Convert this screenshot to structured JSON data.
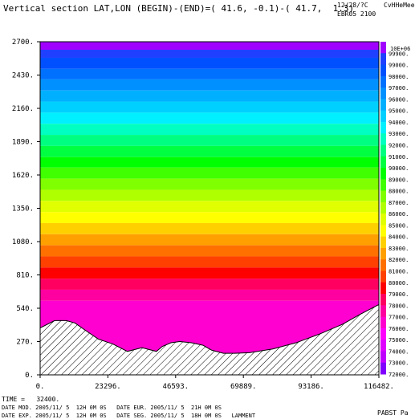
{
  "header": {
    "title": "Vertical section LAT,LON (BEGIN)-(END)=( 41.6, -0.1)-( 41.7,  1.3)",
    "date": "12/28/?C",
    "user": "CvHHeMee",
    "model": "EBR05 2100"
  },
  "footer": {
    "time": "TIME =   32400.",
    "line1": "DATE MOD. 2005/11/ 5  12H 0M 0S   DATE EUR. 2005/11/ 5  21H 0M 0S",
    "line2": "DATE EXP. 2005/11/ 5  12H 0M 0S   DATE SEG. 2005/11/ 5  18H 0M 0S   LAMMENT",
    "variable": "PABST Pa"
  },
  "chart_data": {
    "type": "heatmap",
    "title": "Vertical section LAT,LON (BEGIN)-(END)=( 41.6, -0.1)-( 41.7,  1.3)",
    "xlabel": "",
    "ylabel": "",
    "xlim": [
      0,
      116482
    ],
    "ylim": [
      0,
      2700
    ],
    "x_ticks": [
      "0.",
      "23296.",
      "46593.",
      "69889.",
      "93186.",
      "116482."
    ],
    "x_tick_values": [
      0,
      23296,
      46593,
      69889,
      93186,
      116482
    ],
    "y_ticks": [
      "0.",
      "270.",
      "540.",
      "810.",
      "1080.",
      "1350.",
      "1620.",
      "1890.",
      "2160.",
      "2430.",
      "2700."
    ],
    "y_tick_values": [
      0,
      270,
      540,
      810,
      1080,
      1350,
      1620,
      1890,
      2160,
      2430,
      2700
    ],
    "variable": "PABST Pa",
    "legend_top_label": "10E+06",
    "legend_levels": [
      99900,
      99000,
      98000,
      97000,
      96000,
      95000,
      94000,
      93000,
      92000,
      91000,
      90000,
      89000,
      88000,
      87000,
      86000,
      85000,
      84000,
      83000,
      82000,
      81000,
      80000,
      79000,
      78000,
      77000,
      76000,
      75000,
      74000,
      73000,
      72000
    ],
    "legend_labels": [
      "99900.",
      "99000.",
      "98000.",
      "97000.",
      "96000.",
      "95000.",
      "94000.",
      "93000.",
      "92000.",
      "91000.",
      "90000.",
      "89000.",
      "88000.",
      "87000.",
      "86000.",
      "85000.",
      "84000.",
      "83000.",
      "82000.",
      "81000.",
      "80000.",
      "79000.",
      "78000.",
      "77000.",
      "76000.",
      "75000.",
      "74000.",
      "73000.",
      "72000."
    ],
    "legend_colors": [
      "#a000ff",
      "#2040ff",
      "#0050ff",
      "#0070ff",
      "#0090ff",
      "#00b0ff",
      "#00d0ff",
      "#00f0ff",
      "#00ffc0",
      "#00ff80",
      "#00ff40",
      "#00ff00",
      "#40ff00",
      "#80ff00",
      "#b0ff00",
      "#e0ff00",
      "#ffff00",
      "#ffd000",
      "#ffa000",
      "#ff7000",
      "#ff4000",
      "#ff0000",
      "#ff0060",
      "#ff00a0",
      "#ff00d0",
      "#ff00ff",
      "#e000ff",
      "#c000ff",
      "#8000ff"
    ],
    "pressure_bands": [
      {
        "z_bottom": 2635,
        "z_top": 2700,
        "value": 99900
      },
      {
        "z_bottom": 2570,
        "z_top": 2635,
        "value": 99000
      },
      {
        "z_bottom": 2480,
        "z_top": 2570,
        "value": 98000
      },
      {
        "z_bottom": 2395,
        "z_top": 2480,
        "value": 97000
      },
      {
        "z_bottom": 2305,
        "z_top": 2395,
        "value": 96000
      },
      {
        "z_bottom": 2215,
        "z_top": 2305,
        "value": 95000
      },
      {
        "z_bottom": 2125,
        "z_top": 2215,
        "value": 94000
      },
      {
        "z_bottom": 2035,
        "z_top": 2125,
        "value": 93000
      },
      {
        "z_bottom": 1945,
        "z_top": 2035,
        "value": 92000
      },
      {
        "z_bottom": 1855,
        "z_top": 1945,
        "value": 91000
      },
      {
        "z_bottom": 1765,
        "z_top": 1855,
        "value": 90000
      },
      {
        "z_bottom": 1680,
        "z_top": 1765,
        "value": 89000
      },
      {
        "z_bottom": 1590,
        "z_top": 1680,
        "value": 88000
      },
      {
        "z_bottom": 1500,
        "z_top": 1590,
        "value": 87000
      },
      {
        "z_bottom": 1410,
        "z_top": 1500,
        "value": 86000
      },
      {
        "z_bottom": 1320,
        "z_top": 1410,
        "value": 85000
      },
      {
        "z_bottom": 1230,
        "z_top": 1320,
        "value": 84000
      },
      {
        "z_bottom": 1140,
        "z_top": 1230,
        "value": 83000
      },
      {
        "z_bottom": 1050,
        "z_top": 1140,
        "value": 82000
      },
      {
        "z_bottom": 960,
        "z_top": 1050,
        "value": 81000
      },
      {
        "z_bottom": 870,
        "z_top": 960,
        "value": 80000
      },
      {
        "z_bottom": 780,
        "z_top": 870,
        "value": 79000
      },
      {
        "z_bottom": 690,
        "z_top": 780,
        "value": 78000
      },
      {
        "z_bottom": 600,
        "z_top": 690,
        "value": 77000
      },
      {
        "z_bottom": 0,
        "z_top": 600,
        "value": 76000
      }
    ],
    "terrain": {
      "x": [
        0,
        5000,
        9000,
        12000,
        15000,
        20000,
        25000,
        30000,
        35000,
        40000,
        42000,
        45000,
        48000,
        52000,
        56000,
        59000,
        63000,
        67000,
        72000,
        80000,
        88000,
        96000,
        104000,
        110000,
        116482
      ],
      "z": [
        380,
        440,
        440,
        420,
        370,
        290,
        250,
        190,
        220,
        190,
        230,
        260,
        270,
        260,
        240,
        200,
        175,
        175,
        180,
        210,
        260,
        330,
        410,
        490,
        570
      ]
    }
  }
}
